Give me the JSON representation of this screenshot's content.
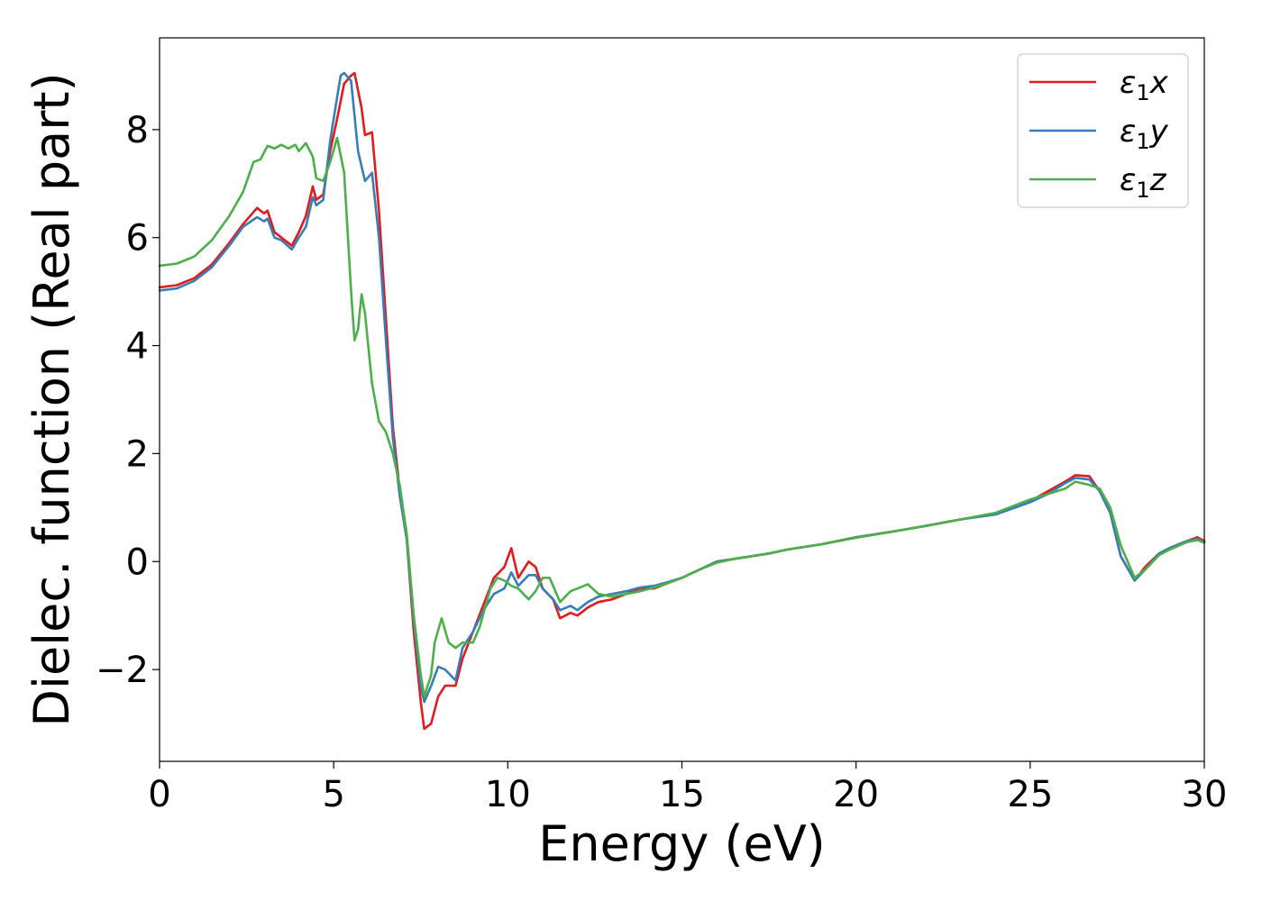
{
  "chart_data": {
    "type": "line",
    "title": "",
    "xlabel": "Energy (eV)",
    "ylabel": "Dielec. function (Real part)",
    "xlim": [
      0,
      30
    ],
    "ylim": [
      -3.7,
      9.7
    ],
    "x_ticks": [
      0,
      5,
      10,
      15,
      20,
      25,
      30
    ],
    "x_tick_labels": [
      "0",
      "5",
      "10",
      "15",
      "20",
      "25",
      "30"
    ],
    "y_ticks": [
      -2,
      0,
      2,
      4,
      6,
      8
    ],
    "y_tick_labels": [
      "−2",
      "0",
      "2",
      "4",
      "6",
      "8"
    ],
    "grid": false,
    "legend_position": "top-right",
    "series": [
      {
        "name": "ε₁x",
        "legend": {
          "symbol": "ε",
          "sub": "1",
          "var": "x"
        },
        "color": "#e41a1c",
        "points": [
          [
            0,
            5.08
          ],
          [
            0.5,
            5.12
          ],
          [
            1.0,
            5.25
          ],
          [
            1.5,
            5.5
          ],
          [
            2.0,
            5.9
          ],
          [
            2.4,
            6.25
          ],
          [
            2.8,
            6.55
          ],
          [
            3.0,
            6.45
          ],
          [
            3.1,
            6.5
          ],
          [
            3.3,
            6.1
          ],
          [
            3.5,
            6.0
          ],
          [
            3.8,
            5.85
          ],
          [
            4.0,
            6.1
          ],
          [
            4.2,
            6.4
          ],
          [
            4.4,
            6.95
          ],
          [
            4.5,
            6.7
          ],
          [
            4.7,
            6.8
          ],
          [
            4.9,
            7.6
          ],
          [
            5.1,
            8.2
          ],
          [
            5.3,
            8.85
          ],
          [
            5.5,
            9.0
          ],
          [
            5.6,
            9.05
          ],
          [
            5.8,
            8.4
          ],
          [
            5.9,
            7.9
          ],
          [
            6.1,
            7.95
          ],
          [
            6.3,
            6.5
          ],
          [
            6.5,
            4.5
          ],
          [
            6.7,
            2.5
          ],
          [
            6.9,
            1.3
          ],
          [
            7.1,
            0.4
          ],
          [
            7.3,
            -1.3
          ],
          [
            7.5,
            -2.6
          ],
          [
            7.6,
            -3.1
          ],
          [
            7.8,
            -3.0
          ],
          [
            8.0,
            -2.5
          ],
          [
            8.2,
            -2.3
          ],
          [
            8.5,
            -2.3
          ],
          [
            8.7,
            -1.8
          ],
          [
            9.0,
            -1.3
          ],
          [
            9.3,
            -0.8
          ],
          [
            9.6,
            -0.3
          ],
          [
            9.9,
            -0.1
          ],
          [
            10.1,
            0.25
          ],
          [
            10.3,
            -0.3
          ],
          [
            10.6,
            0.0
          ],
          [
            10.8,
            -0.1
          ],
          [
            11.0,
            -0.5
          ],
          [
            11.3,
            -0.7
          ],
          [
            11.5,
            -1.05
          ],
          [
            11.8,
            -0.95
          ],
          [
            12.0,
            -1.0
          ],
          [
            12.3,
            -0.85
          ],
          [
            12.6,
            -0.75
          ],
          [
            13.0,
            -0.7
          ],
          [
            13.4,
            -0.6
          ],
          [
            13.8,
            -0.5
          ],
          [
            14.2,
            -0.5
          ],
          [
            14.6,
            -0.4
          ],
          [
            15.0,
            -0.3
          ],
          [
            15.5,
            -0.15
          ],
          [
            16.0,
            0.0
          ],
          [
            16.5,
            0.05
          ],
          [
            17.0,
            0.1
          ],
          [
            17.5,
            0.15
          ],
          [
            18.0,
            0.22
          ],
          [
            19.0,
            0.32
          ],
          [
            20.0,
            0.45
          ],
          [
            21.0,
            0.55
          ],
          [
            22.0,
            0.66
          ],
          [
            23.0,
            0.78
          ],
          [
            24.0,
            0.88
          ],
          [
            25.0,
            1.12
          ],
          [
            25.5,
            1.3
          ],
          [
            26.0,
            1.48
          ],
          [
            26.3,
            1.6
          ],
          [
            26.7,
            1.58
          ],
          [
            27.0,
            1.3
          ],
          [
            27.3,
            0.9
          ],
          [
            27.6,
            0.1
          ],
          [
            28.0,
            -0.35
          ],
          [
            28.3,
            -0.1
          ],
          [
            28.7,
            0.15
          ],
          [
            29.0,
            0.25
          ],
          [
            29.5,
            0.38
          ],
          [
            29.8,
            0.45
          ],
          [
            30.0,
            0.38
          ]
        ]
      },
      {
        "name": "ε₁y",
        "legend": {
          "symbol": "ε",
          "sub": "1",
          "var": "y"
        },
        "color": "#377eb8",
        "points": [
          [
            0,
            5.02
          ],
          [
            0.5,
            5.06
          ],
          [
            1.0,
            5.2
          ],
          [
            1.5,
            5.45
          ],
          [
            2.0,
            5.85
          ],
          [
            2.4,
            6.2
          ],
          [
            2.8,
            6.38
          ],
          [
            3.0,
            6.3
          ],
          [
            3.1,
            6.35
          ],
          [
            3.3,
            6.0
          ],
          [
            3.5,
            5.95
          ],
          [
            3.8,
            5.78
          ],
          [
            4.0,
            6.0
          ],
          [
            4.2,
            6.2
          ],
          [
            4.4,
            6.75
          ],
          [
            4.5,
            6.6
          ],
          [
            4.7,
            6.7
          ],
          [
            4.9,
            7.8
          ],
          [
            5.1,
            8.6
          ],
          [
            5.2,
            9.0
          ],
          [
            5.3,
            9.05
          ],
          [
            5.5,
            8.9
          ],
          [
            5.7,
            7.6
          ],
          [
            5.9,
            7.05
          ],
          [
            6.1,
            7.2
          ],
          [
            6.3,
            6.0
          ],
          [
            6.5,
            4.1
          ],
          [
            6.7,
            2.3
          ],
          [
            6.9,
            1.2
          ],
          [
            7.1,
            0.4
          ],
          [
            7.3,
            -1.1
          ],
          [
            7.5,
            -2.3
          ],
          [
            7.6,
            -2.6
          ],
          [
            7.8,
            -2.3
          ],
          [
            8.0,
            -1.95
          ],
          [
            8.2,
            -2.0
          ],
          [
            8.5,
            -2.2
          ],
          [
            8.7,
            -1.6
          ],
          [
            9.0,
            -1.3
          ],
          [
            9.3,
            -0.9
          ],
          [
            9.6,
            -0.6
          ],
          [
            9.9,
            -0.5
          ],
          [
            10.1,
            -0.2
          ],
          [
            10.3,
            -0.45
          ],
          [
            10.6,
            -0.25
          ],
          [
            10.8,
            -0.25
          ],
          [
            11.0,
            -0.5
          ],
          [
            11.3,
            -0.7
          ],
          [
            11.5,
            -0.9
          ],
          [
            11.8,
            -0.82
          ],
          [
            12.0,
            -0.9
          ],
          [
            12.3,
            -0.75
          ],
          [
            12.6,
            -0.65
          ],
          [
            13.0,
            -0.6
          ],
          [
            13.4,
            -0.55
          ],
          [
            13.8,
            -0.48
          ],
          [
            14.2,
            -0.45
          ],
          [
            14.6,
            -0.38
          ],
          [
            15.0,
            -0.3
          ],
          [
            15.5,
            -0.15
          ],
          [
            16.0,
            0.0
          ],
          [
            16.5,
            0.05
          ],
          [
            17.0,
            0.1
          ],
          [
            17.5,
            0.15
          ],
          [
            18.0,
            0.22
          ],
          [
            19.0,
            0.32
          ],
          [
            20.0,
            0.45
          ],
          [
            21.0,
            0.55
          ],
          [
            22.0,
            0.66
          ],
          [
            23.0,
            0.78
          ],
          [
            24.0,
            0.87
          ],
          [
            25.0,
            1.1
          ],
          [
            25.5,
            1.25
          ],
          [
            26.0,
            1.45
          ],
          [
            26.3,
            1.55
          ],
          [
            26.7,
            1.52
          ],
          [
            27.0,
            1.3
          ],
          [
            27.3,
            0.9
          ],
          [
            27.6,
            0.1
          ],
          [
            28.0,
            -0.35
          ],
          [
            28.3,
            -0.15
          ],
          [
            28.7,
            0.15
          ],
          [
            29.0,
            0.25
          ],
          [
            29.5,
            0.38
          ],
          [
            29.8,
            0.42
          ],
          [
            30.0,
            0.36
          ]
        ]
      },
      {
        "name": "ε₁z",
        "legend": {
          "symbol": "ε",
          "sub": "1",
          "var": "z"
        },
        "color": "#4daf4a",
        "points": [
          [
            0,
            5.48
          ],
          [
            0.5,
            5.52
          ],
          [
            1.0,
            5.65
          ],
          [
            1.5,
            5.95
          ],
          [
            2.0,
            6.4
          ],
          [
            2.4,
            6.85
          ],
          [
            2.7,
            7.4
          ],
          [
            2.9,
            7.45
          ],
          [
            3.1,
            7.7
          ],
          [
            3.3,
            7.65
          ],
          [
            3.5,
            7.72
          ],
          [
            3.7,
            7.65
          ],
          [
            3.9,
            7.72
          ],
          [
            4.0,
            7.6
          ],
          [
            4.2,
            7.75
          ],
          [
            4.4,
            7.5
          ],
          [
            4.5,
            7.1
          ],
          [
            4.7,
            7.05
          ],
          [
            4.9,
            7.4
          ],
          [
            5.1,
            7.85
          ],
          [
            5.3,
            7.2
          ],
          [
            5.5,
            5.0
          ],
          [
            5.6,
            4.1
          ],
          [
            5.7,
            4.3
          ],
          [
            5.8,
            4.95
          ],
          [
            5.9,
            4.6
          ],
          [
            6.1,
            3.3
          ],
          [
            6.3,
            2.6
          ],
          [
            6.5,
            2.4
          ],
          [
            6.7,
            2.0
          ],
          [
            6.9,
            1.4
          ],
          [
            7.1,
            0.5
          ],
          [
            7.3,
            -1.0
          ],
          [
            7.5,
            -2.1
          ],
          [
            7.6,
            -2.5
          ],
          [
            7.8,
            -2.1
          ],
          [
            7.9,
            -1.5
          ],
          [
            8.1,
            -1.05
          ],
          [
            8.3,
            -1.5
          ],
          [
            8.5,
            -1.6
          ],
          [
            8.7,
            -1.5
          ],
          [
            9.0,
            -1.5
          ],
          [
            9.2,
            -1.2
          ],
          [
            9.5,
            -0.5
          ],
          [
            9.7,
            -0.3
          ],
          [
            9.9,
            -0.35
          ],
          [
            10.1,
            -0.45
          ],
          [
            10.3,
            -0.5
          ],
          [
            10.6,
            -0.7
          ],
          [
            10.8,
            -0.55
          ],
          [
            11.0,
            -0.3
          ],
          [
            11.2,
            -0.3
          ],
          [
            11.5,
            -0.75
          ],
          [
            11.8,
            -0.55
          ],
          [
            12.0,
            -0.5
          ],
          [
            12.3,
            -0.42
          ],
          [
            12.6,
            -0.6
          ],
          [
            13.0,
            -0.65
          ],
          [
            13.4,
            -0.6
          ],
          [
            13.8,
            -0.55
          ],
          [
            14.2,
            -0.48
          ],
          [
            14.6,
            -0.4
          ],
          [
            15.0,
            -0.3
          ],
          [
            15.5,
            -0.15
          ],
          [
            16.0,
            -0.02
          ],
          [
            16.5,
            0.05
          ],
          [
            17.0,
            0.1
          ],
          [
            17.5,
            0.15
          ],
          [
            18.0,
            0.22
          ],
          [
            19.0,
            0.32
          ],
          [
            20.0,
            0.44
          ],
          [
            21.0,
            0.55
          ],
          [
            22.0,
            0.66
          ],
          [
            23.0,
            0.78
          ],
          [
            24.0,
            0.9
          ],
          [
            25.0,
            1.15
          ],
          [
            25.5,
            1.25
          ],
          [
            26.0,
            1.35
          ],
          [
            26.3,
            1.48
          ],
          [
            26.7,
            1.42
          ],
          [
            27.0,
            1.35
          ],
          [
            27.3,
            1.0
          ],
          [
            27.6,
            0.3
          ],
          [
            28.0,
            -0.3
          ],
          [
            28.3,
            -0.15
          ],
          [
            28.7,
            0.12
          ],
          [
            29.0,
            0.22
          ],
          [
            29.5,
            0.36
          ],
          [
            29.8,
            0.4
          ],
          [
            30.0,
            0.35
          ]
        ]
      }
    ]
  }
}
